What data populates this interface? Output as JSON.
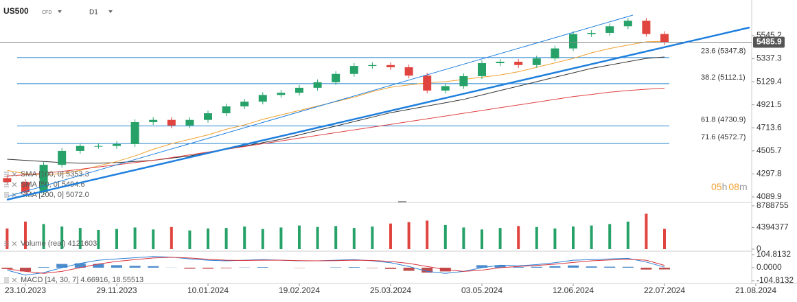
{
  "header": {
    "symbol": "US500",
    "instrument": "CFD",
    "timeframe": "D1"
  },
  "countdown": [
    "05",
    "h",
    "08",
    "m"
  ],
  "chart_data": [
    {
      "type": "candlestick",
      "categories": [
        null,
        "23.10.2023",
        null,
        null,
        null,
        null,
        "29.11.2023",
        null,
        null,
        null,
        null,
        "10.01.2024",
        null,
        null,
        null,
        null,
        "19.02.2024",
        null,
        null,
        null,
        null,
        "25.03.2024",
        null,
        null,
        null,
        null,
        "03.05.2024",
        null,
        null,
        null,
        null,
        "12.06.2024",
        null,
        null,
        null,
        null,
        "22.07.2024",
        null,
        null,
        null,
        null,
        "21.08.2024"
      ],
      "open": [
        4260,
        4225,
        4133,
        4380,
        4505,
        4550,
        4550,
        4567,
        4765,
        4785,
        4735,
        4785,
        4845,
        4907,
        4950,
        5010,
        5030,
        5075,
        5125,
        5200,
        5272,
        5280,
        5260,
        5185,
        5050,
        5090,
        5180,
        5297,
        5310,
        5280,
        5340,
        5430,
        5560,
        5570,
        5630,
        5680,
        5560,
        null,
        null,
        null,
        null,
        null
      ],
      "high": [
        4285,
        4250,
        4405,
        4530,
        4575,
        4575,
        4592,
        4790,
        4810,
        4810,
        4810,
        4870,
        4932,
        4975,
        5035,
        5055,
        5100,
        5150,
        5225,
        5297,
        5305,
        5305,
        5285,
        5210,
        5115,
        5205,
        5322,
        5335,
        5335,
        5365,
        5455,
        5585,
        5595,
        5655,
        5705,
        5705,
        5585,
        null,
        null,
        null,
        null,
        null
      ],
      "low": [
        4200,
        4108,
        4108,
        4355,
        4480,
        4525,
        4525,
        4542,
        4740,
        4710,
        4710,
        4760,
        4820,
        4882,
        4925,
        4985,
        5005,
        5050,
        5100,
        5175,
        5247,
        5235,
        5160,
        5025,
        5025,
        5065,
        5155,
        5272,
        5255,
        5255,
        5315,
        5405,
        5535,
        5545,
        5605,
        5535,
        5461,
        null,
        null,
        null,
        null,
        null
      ],
      "close": [
        4225,
        4133,
        4380,
        4505,
        4550,
        4550,
        4567,
        4765,
        4785,
        4735,
        4785,
        4845,
        4907,
        4950,
        5010,
        5030,
        5075,
        5125,
        5200,
        5272,
        5280,
        5260,
        5185,
        5050,
        5090,
        5180,
        5297,
        5310,
        5280,
        5340,
        5430,
        5560,
        5570,
        5630,
        5680,
        5560,
        5486,
        null,
        null,
        null,
        null,
        null
      ],
      "up_color": "#26a269",
      "down_color": "#e0443e",
      "ylim": [
        4040,
        5867
      ],
      "yticks": [
        5545.2,
        5337.3,
        5129.4,
        4921.5,
        4713.6,
        4505.7,
        4297.8,
        4089.9
      ],
      "last_price": 5485.9,
      "overlays": [
        {
          "name": "SMA [100, 0] 5353.3",
          "color": "#333333",
          "values": [
            4430,
            4420,
            4410,
            4400,
            4395,
            4395,
            4400,
            4410,
            4420,
            4440,
            4460,
            4490,
            4520,
            4550,
            4580,
            4610,
            4650,
            4690,
            4730,
            4770,
            4810,
            4850,
            4880,
            4910,
            4940,
            4970,
            5010,
            5050,
            5090,
            5130,
            5170,
            5210,
            5250,
            5280,
            5310,
            5340,
            5353,
            null,
            null,
            null,
            null,
            null
          ]
        },
        {
          "name": "SMA [50, 0] 5494.6",
          "color": "#f0a030",
          "values": [
            4330,
            4300,
            4290,
            4300,
            4330,
            4370,
            4410,
            4460,
            4520,
            4570,
            4610,
            4650,
            4700,
            4740,
            4790,
            4830,
            4870,
            4910,
            4950,
            4990,
            5040,
            5080,
            5100,
            5120,
            5130,
            5150,
            5170,
            5190,
            5220,
            5260,
            5300,
            5340,
            5390,
            5430,
            5460,
            5490,
            5495,
            null,
            null,
            null,
            null,
            null
          ]
        },
        {
          "name": "SMA [200, 0] 5072.0",
          "color": "#e04040",
          "values": [
            4280,
            4290,
            4305,
            4320,
            4340,
            4360,
            4380,
            4400,
            4420,
            4445,
            4470,
            4495,
            4520,
            4545,
            4570,
            4595,
            4620,
            4645,
            4670,
            4695,
            4720,
            4745,
            4770,
            4795,
            4820,
            4845,
            4870,
            4895,
            4920,
            4945,
            4970,
            4995,
            5015,
            5035,
            5050,
            5062,
            5072,
            null,
            null,
            null,
            null,
            null
          ]
        }
      ],
      "levels": [
        {
          "value": 5347.8,
          "label": "23.6 (5347.8)"
        },
        {
          "value": 5112.1,
          "label": "38.2 (5112.1)"
        },
        {
          "value": 4730.9,
          "label": "61.8 (4730.9)"
        },
        {
          "value": 4572.7,
          "label": "71.6 (4572.7)"
        }
      ],
      "level_color": "#1e7fcf"
    },
    {
      "type": "volume",
      "name": "Volume (real) 4121603",
      "values": [
        4200000,
        5600000,
        5100000,
        4600000,
        4300000,
        3900000,
        4100000,
        4400000,
        4000000,
        4500000,
        3800000,
        4200000,
        4300000,
        4600000,
        4100000,
        4400000,
        4800000,
        4500000,
        4700000,
        4300000,
        4600000,
        5200000,
        5500000,
        5800000,
        4900000,
        4400000,
        4000000,
        4300000,
        4700000,
        4500000,
        4200000,
        4600000,
        4800000,
        5100000,
        5600000,
        7200000,
        4121603,
        null,
        null,
        null,
        null,
        null
      ],
      "ylim": [
        0,
        9200000
      ],
      "yticks": [
        8788755,
        4394377,
        0
      ]
    },
    {
      "type": "macd",
      "name": "MACD [14, 30, 7] 4.66916, 18.55513",
      "macd": {
        "color": "#2a7fd4",
        "values": [
          -20,
          -60,
          -40,
          0,
          35,
          60,
          70,
          80,
          90,
          85,
          70,
          60,
          55,
          60,
          65,
          60,
          55,
          55,
          60,
          65,
          55,
          40,
          10,
          -30,
          -45,
          -30,
          0,
          20,
          15,
          25,
          40,
          60,
          65,
          70,
          75,
          45,
          4.66916,
          null,
          null,
          null,
          null,
          null
        ]
      },
      "signal": {
        "color": "#d8333a",
        "values": [
          -10,
          -30,
          -45,
          -30,
          0,
          30,
          50,
          65,
          78,
          84,
          78,
          68,
          60,
          58,
          60,
          60,
          57,
          55,
          57,
          60,
          58,
          50,
          35,
          10,
          -15,
          -30,
          -20,
          0,
          10,
          18,
          28,
          42,
          55,
          62,
          68,
          60,
          18.55513,
          null,
          null,
          null,
          null,
          null
        ]
      },
      "histogram": {
        "color": "#1f6fbf",
        "negative_color": "#b02020",
        "values": [
          -10,
          -30,
          5,
          30,
          35,
          30,
          20,
          15,
          12,
          1,
          -8,
          -8,
          -5,
          2,
          5,
          0,
          -2,
          0,
          3,
          5,
          -3,
          -10,
          -25,
          -40,
          -30,
          0,
          20,
          20,
          5,
          7,
          12,
          18,
          10,
          8,
          7,
          -15,
          -13.89,
          null,
          null,
          null,
          null,
          null
        ]
      },
      "ylim": [
        -126.9,
        126.9
      ],
      "yticks": [
        104.8132,
        {
          "value": 0,
          "label": "0.0000"
        },
        -104.8132
      ]
    }
  ]
}
